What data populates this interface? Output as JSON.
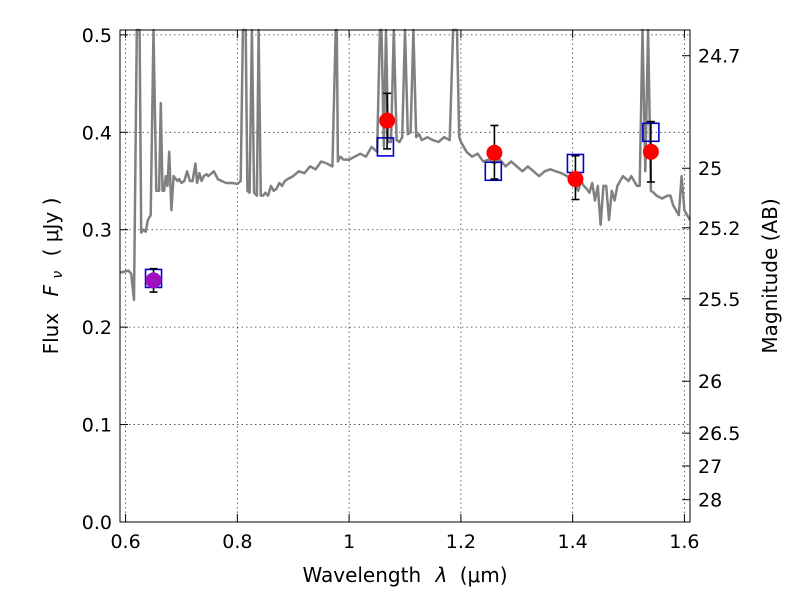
{
  "chart_data": {
    "type": "scatter",
    "xlabel_text": "Wavelength",
    "xlabel_symbol": "λ",
    "xlabel_unit": "(μm)",
    "ylabel_text": "Flux",
    "ylabel_symbol": "F",
    "ylabel_subscript": "ν",
    "ylabel_unit": "( μJy )",
    "y2label": "Magnitude (AB)",
    "xlim": [
      0.59,
      1.61
    ],
    "ylim": [
      0.0,
      0.505
    ],
    "grid": true,
    "x_ticks": [
      0.6,
      0.8,
      1.0,
      1.2,
      1.4,
      1.6
    ],
    "x_tick_labels": [
      "0.6",
      "0.8",
      "1",
      "1.2",
      "1.4",
      "1.6"
    ],
    "y_ticks": [
      0.0,
      0.1,
      0.2,
      0.3,
      0.4,
      0.5
    ],
    "y_tick_labels": [
      "0.0",
      "0.1",
      "0.2",
      "0.3",
      "0.4",
      "0.5"
    ],
    "y2_ticks": [
      {
        "label": "24.7",
        "flux": 0.4786
      },
      {
        "label": "25",
        "flux": 0.3631
      },
      {
        "label": "25.2",
        "flux": 0.302
      },
      {
        "label": "25.5",
        "flux": 0.2291
      },
      {
        "label": "26",
        "flux": 0.1445
      },
      {
        "label": "26.5",
        "flux": 0.0912
      },
      {
        "label": "27",
        "flux": 0.0575
      },
      {
        "label": "28",
        "flux": 0.0229
      }
    ],
    "series": [
      {
        "kind": "spectrum",
        "color": "#808080",
        "x": [
          0.59,
          0.605,
          0.61,
          0.615,
          0.62,
          0.625,
          0.628,
          0.632,
          0.636,
          0.64,
          0.645,
          0.65,
          0.655,
          0.66,
          0.663,
          0.666,
          0.669,
          0.672,
          0.675,
          0.678,
          0.682,
          0.686,
          0.69,
          0.693,
          0.696,
          0.7,
          0.705,
          0.71,
          0.715,
          0.72,
          0.725,
          0.728,
          0.732,
          0.736,
          0.74,
          0.745,
          0.748,
          0.752,
          0.758,
          0.765,
          0.772,
          0.78,
          0.79,
          0.8,
          0.806,
          0.81,
          0.812,
          0.815,
          0.818,
          0.822,
          0.826,
          0.83,
          0.835,
          0.838,
          0.842,
          0.846,
          0.85,
          0.855,
          0.86,
          0.865,
          0.87,
          0.875,
          0.88,
          0.885,
          0.89,
          0.9,
          0.91,
          0.92,
          0.93,
          0.94,
          0.95,
          0.96,
          0.97,
          0.976,
          0.978,
          0.98,
          0.984,
          0.99,
          1.0,
          1.01,
          1.02,
          1.03,
          1.04,
          1.05,
          1.055,
          1.058,
          1.062,
          1.066,
          1.07,
          1.075,
          1.08,
          1.085,
          1.09,
          1.095,
          1.1,
          1.105,
          1.11,
          1.115,
          1.12,
          1.125,
          1.13,
          1.14,
          1.15,
          1.16,
          1.17,
          1.18,
          1.186,
          1.19,
          1.193,
          1.197,
          1.2,
          1.205,
          1.21,
          1.22,
          1.23,
          1.24,
          1.25,
          1.26,
          1.27,
          1.28,
          1.29,
          1.3,
          1.31,
          1.32,
          1.33,
          1.34,
          1.35,
          1.36,
          1.37,
          1.38,
          1.39,
          1.4,
          1.405,
          1.41,
          1.415,
          1.42,
          1.425,
          1.43,
          1.435,
          1.44,
          1.445,
          1.45,
          1.455,
          1.46,
          1.465,
          1.47,
          1.475,
          1.48,
          1.49,
          1.5,
          1.505,
          1.51,
          1.515,
          1.52,
          1.525,
          1.53,
          1.535,
          1.54,
          1.545,
          1.55,
          1.56,
          1.57,
          1.575,
          1.58,
          1.585,
          1.59,
          1.595,
          1.6,
          1.61
        ],
        "y": [
          0.256,
          0.258,
          0.255,
          0.228,
          0.505,
          0.505,
          0.297,
          0.3,
          0.298,
          0.31,
          0.315,
          0.505,
          0.34,
          0.34,
          0.43,
          0.34,
          0.34,
          0.355,
          0.345,
          0.38,
          0.32,
          0.355,
          0.352,
          0.35,
          0.352,
          0.348,
          0.35,
          0.36,
          0.35,
          0.35,
          0.368,
          0.348,
          0.358,
          0.35,
          0.355,
          0.357,
          0.355,
          0.357,
          0.36,
          0.352,
          0.35,
          0.348,
          0.348,
          0.347,
          0.35,
          0.505,
          0.505,
          0.505,
          0.34,
          0.338,
          0.505,
          0.338,
          0.335,
          0.505,
          0.335,
          0.335,
          0.338,
          0.335,
          0.345,
          0.34,
          0.342,
          0.348,
          0.345,
          0.35,
          0.352,
          0.355,
          0.36,
          0.358,
          0.365,
          0.362,
          0.37,
          0.368,
          0.365,
          0.505,
          0.505,
          0.37,
          0.375,
          0.372,
          0.372,
          0.375,
          0.378,
          0.375,
          0.385,
          0.38,
          0.505,
          0.505,
          0.385,
          0.505,
          0.39,
          0.39,
          0.505,
          0.392,
          0.39,
          0.395,
          0.505,
          0.398,
          0.4,
          0.505,
          0.395,
          0.398,
          0.392,
          0.395,
          0.392,
          0.39,
          0.395,
          0.392,
          0.505,
          0.505,
          0.505,
          0.395,
          0.39,
          0.385,
          0.38,
          0.375,
          0.378,
          0.37,
          0.372,
          0.368,
          0.372,
          0.365,
          0.37,
          0.365,
          0.36,
          0.365,
          0.36,
          0.355,
          0.36,
          0.362,
          0.36,
          0.358,
          0.355,
          0.35,
          0.345,
          0.34,
          0.35,
          0.345,
          0.342,
          0.338,
          0.348,
          0.33,
          0.345,
          0.305,
          0.345,
          0.345,
          0.31,
          0.34,
          0.33,
          0.345,
          0.355,
          0.35,
          0.355,
          0.35,
          0.345,
          0.345,
          0.505,
          0.36,
          0.505,
          0.34,
          0.338,
          0.335,
          0.332,
          0.335,
          0.335,
          0.325,
          0.32,
          0.315,
          0.355,
          0.32,
          0.31
        ]
      },
      {
        "kind": "model",
        "marker": "open-square",
        "color": "#0000cc",
        "x": [
          0.65,
          1.065,
          1.258,
          1.405,
          1.54
        ],
        "y": [
          0.25,
          0.385,
          0.36,
          0.368,
          0.4
        ]
      },
      {
        "kind": "observed",
        "marker": "filled-circle",
        "color": "#ff0000",
        "highlight_color": "#a010c0",
        "x": [
          0.65,
          1.068,
          1.26,
          1.405,
          1.54
        ],
        "y": [
          0.248,
          0.412,
          0.379,
          0.352,
          0.38
        ],
        "yerr_low": [
          0.012,
          0.029,
          0.027,
          0.021,
          0.031
        ],
        "yerr_high": [
          0.012,
          0.028,
          0.028,
          0.024,
          0.031
        ]
      }
    ]
  }
}
